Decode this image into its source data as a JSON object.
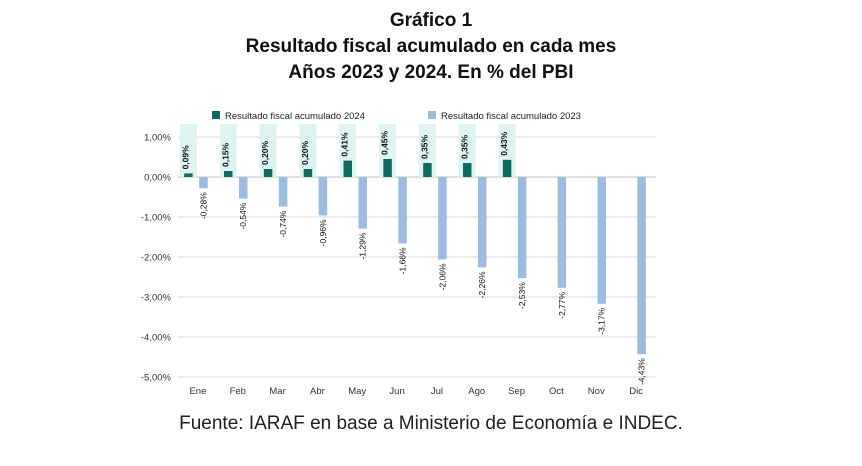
{
  "header": {
    "line1": "Gráfico 1",
    "line2": "Resultado fiscal acumulado en cada mes",
    "line3": "Años 2023 y 2024. En % del PBI"
  },
  "source": "Fuente: IARAF en base a Ministerio de Economía e INDEC.",
  "colors": {
    "series_2024": "#0f6b5f",
    "series_2023": "#9dbcdf",
    "label_box": "#dff3f3",
    "gridline": "#d9d9d9"
  },
  "chart_data": {
    "type": "bar",
    "title": "Resultado fiscal acumulado en cada mes",
    "ylim": [
      -5,
      1
    ],
    "yticks": [
      "1,00%",
      "0,00%",
      "-1,00%",
      "-2,00%",
      "-3,00%",
      "-4,00%",
      "-5,00%"
    ],
    "grid": true,
    "legend_position": "top",
    "categories": [
      "Ene",
      "Feb",
      "Mar",
      "Abr",
      "May",
      "Jun",
      "Jul",
      "Ago",
      "Sep",
      "Oct",
      "Nov",
      "Dic"
    ],
    "series": [
      {
        "name": "Resultado fiscal acumulado 2024",
        "values": [
          0.09,
          0.15,
          0.2,
          0.2,
          0.41,
          0.45,
          0.35,
          0.35,
          0.43,
          null,
          null,
          null
        ],
        "labels": [
          "0,09%",
          "0,15%",
          "0,20%",
          "0,20%",
          "0,41%",
          "0,45%",
          "0,35%",
          "0,35%",
          "0,43%",
          "",
          "",
          ""
        ]
      },
      {
        "name": "Resultado fiscal acumulado 2023",
        "values": [
          -0.28,
          -0.54,
          -0.74,
          -0.96,
          -1.29,
          -1.66,
          -2.06,
          -2.26,
          -2.53,
          -2.77,
          -3.17,
          -4.43
        ],
        "labels": [
          "-0,28%",
          "-0,54%",
          "-0,74%",
          "-0,96%",
          "-1,29%",
          "-1,66%",
          "-2,06%",
          "-2,26%",
          "-2,53%",
          "-2,77%",
          "-3,17%",
          "-4,43%"
        ]
      }
    ]
  }
}
